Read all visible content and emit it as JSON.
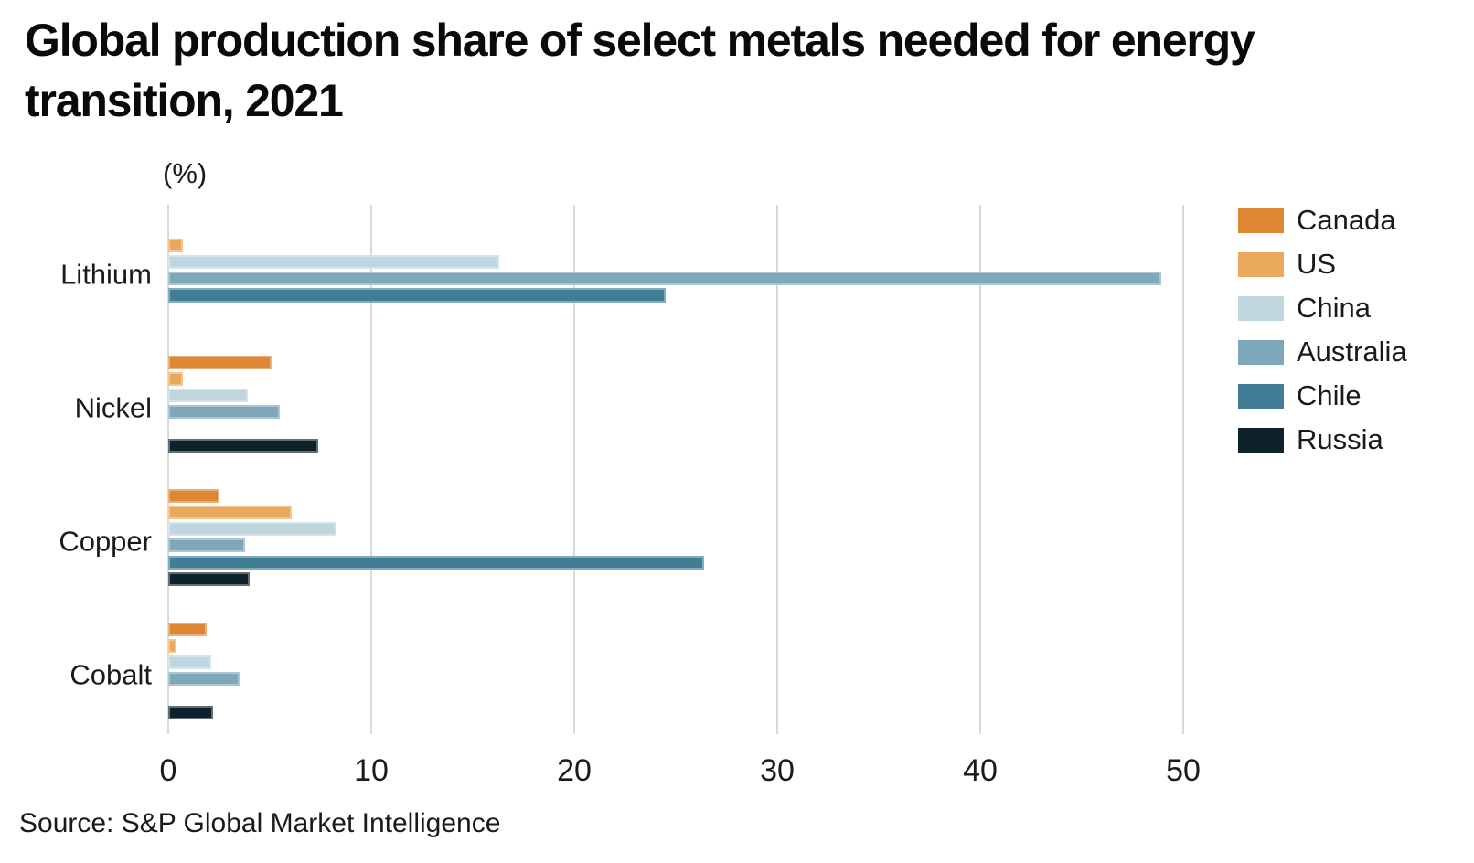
{
  "title": "Global production share of select metals needed for energy transition, 2021",
  "unit_label": "(%)",
  "source": "Source: S&P Global Market Intelligence",
  "colors": {
    "grid": "#d9d9d9",
    "text": "#1a1a1a",
    "title": "#0a0a0a"
  },
  "chart_data": {
    "type": "bar",
    "orientation": "horizontal",
    "title": "Global production share of select metals needed for energy transition, 2021",
    "xlabel": "(%)",
    "ylabel": "",
    "xlim": [
      0,
      50
    ],
    "x_ticks": [
      0,
      10,
      20,
      30,
      40,
      50
    ],
    "grid": "vertical",
    "legend_position": "right",
    "categories": [
      "Lithium",
      "Nickel",
      "Copper",
      "Cobalt"
    ],
    "series": [
      {
        "name": "Canada",
        "color": "#dd8733",
        "values": [
          0,
          5.1,
          2.5,
          1.9
        ]
      },
      {
        "name": "US",
        "color": "#e8a95c",
        "values": [
          0.7,
          0.7,
          6.1,
          0.4
        ]
      },
      {
        "name": "China",
        "color": "#c0d6de",
        "values": [
          16.3,
          3.9,
          8.3,
          2.1
        ]
      },
      {
        "name": "Australia",
        "color": "#7ea8ba",
        "values": [
          48.9,
          5.5,
          3.8,
          3.5
        ]
      },
      {
        "name": "Chile",
        "color": "#417e96",
        "values": [
          24.5,
          0,
          26.4,
          0
        ]
      },
      {
        "name": "Russia",
        "color": "#0e222c",
        "values": [
          0,
          7.4,
          4.0,
          2.2
        ]
      }
    ]
  }
}
